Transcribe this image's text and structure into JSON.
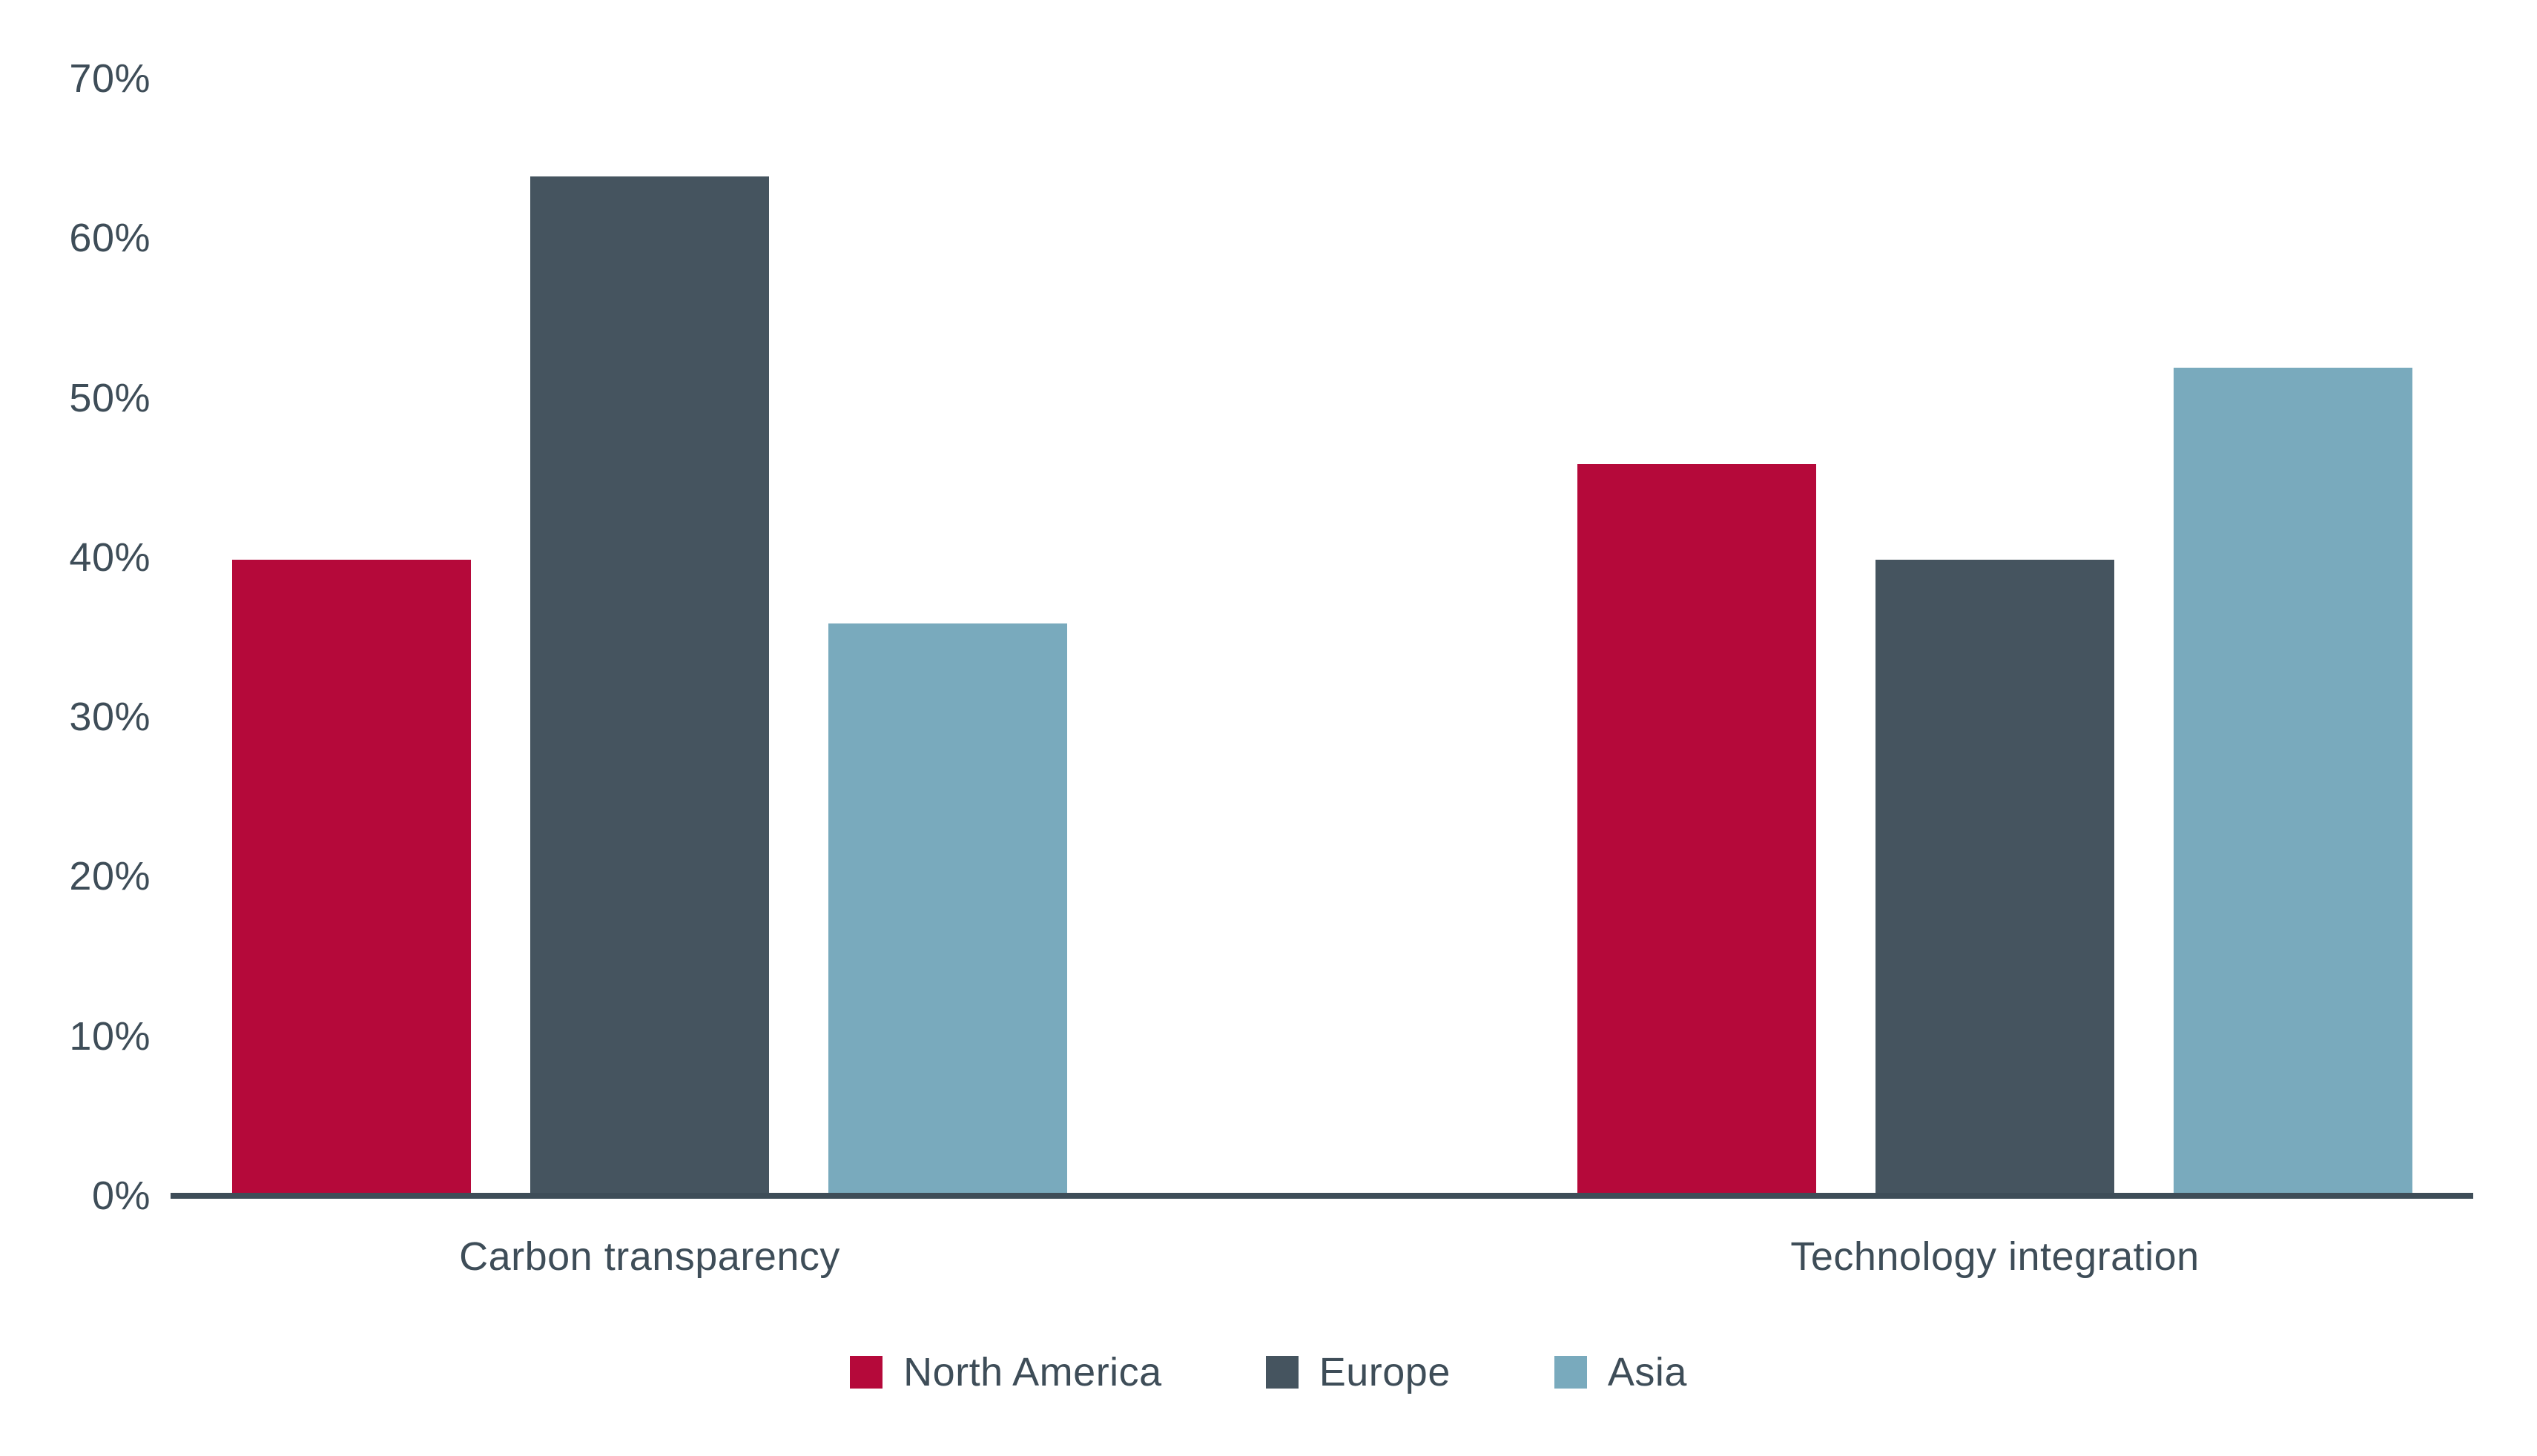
{
  "chart_data": {
    "type": "bar",
    "title": "",
    "xlabel": "",
    "ylabel": "",
    "categories": [
      "Carbon transparency",
      "Technology integration"
    ],
    "series": [
      {
        "name": "North America",
        "color": "#b5093a",
        "values": [
          40,
          46
        ]
      },
      {
        "name": "Europe",
        "color": "#45545f",
        "values": [
          64,
          40
        ]
      },
      {
        "name": "Asia",
        "color": "#79aabd",
        "values": [
          36,
          52
        ]
      }
    ],
    "y_axis": {
      "unit": "%",
      "min": 0,
      "max": 70,
      "ticks": [
        {
          "value": 70,
          "label": "70%"
        },
        {
          "value": 60,
          "label": "60%"
        },
        {
          "value": 50,
          "label": "50%"
        },
        {
          "value": 40,
          "label": "40%"
        },
        {
          "value": 30,
          "label": "30%"
        },
        {
          "value": 20,
          "label": "20%"
        },
        {
          "value": 10,
          "label": "10%"
        },
        {
          "value": 0,
          "label": "0%"
        }
      ]
    },
    "grid": false,
    "legend": {
      "position": "bottom"
    },
    "colors": {
      "text": "#3e4d58",
      "axis_line": "#3e4d58",
      "background": "#ffffff"
    }
  }
}
